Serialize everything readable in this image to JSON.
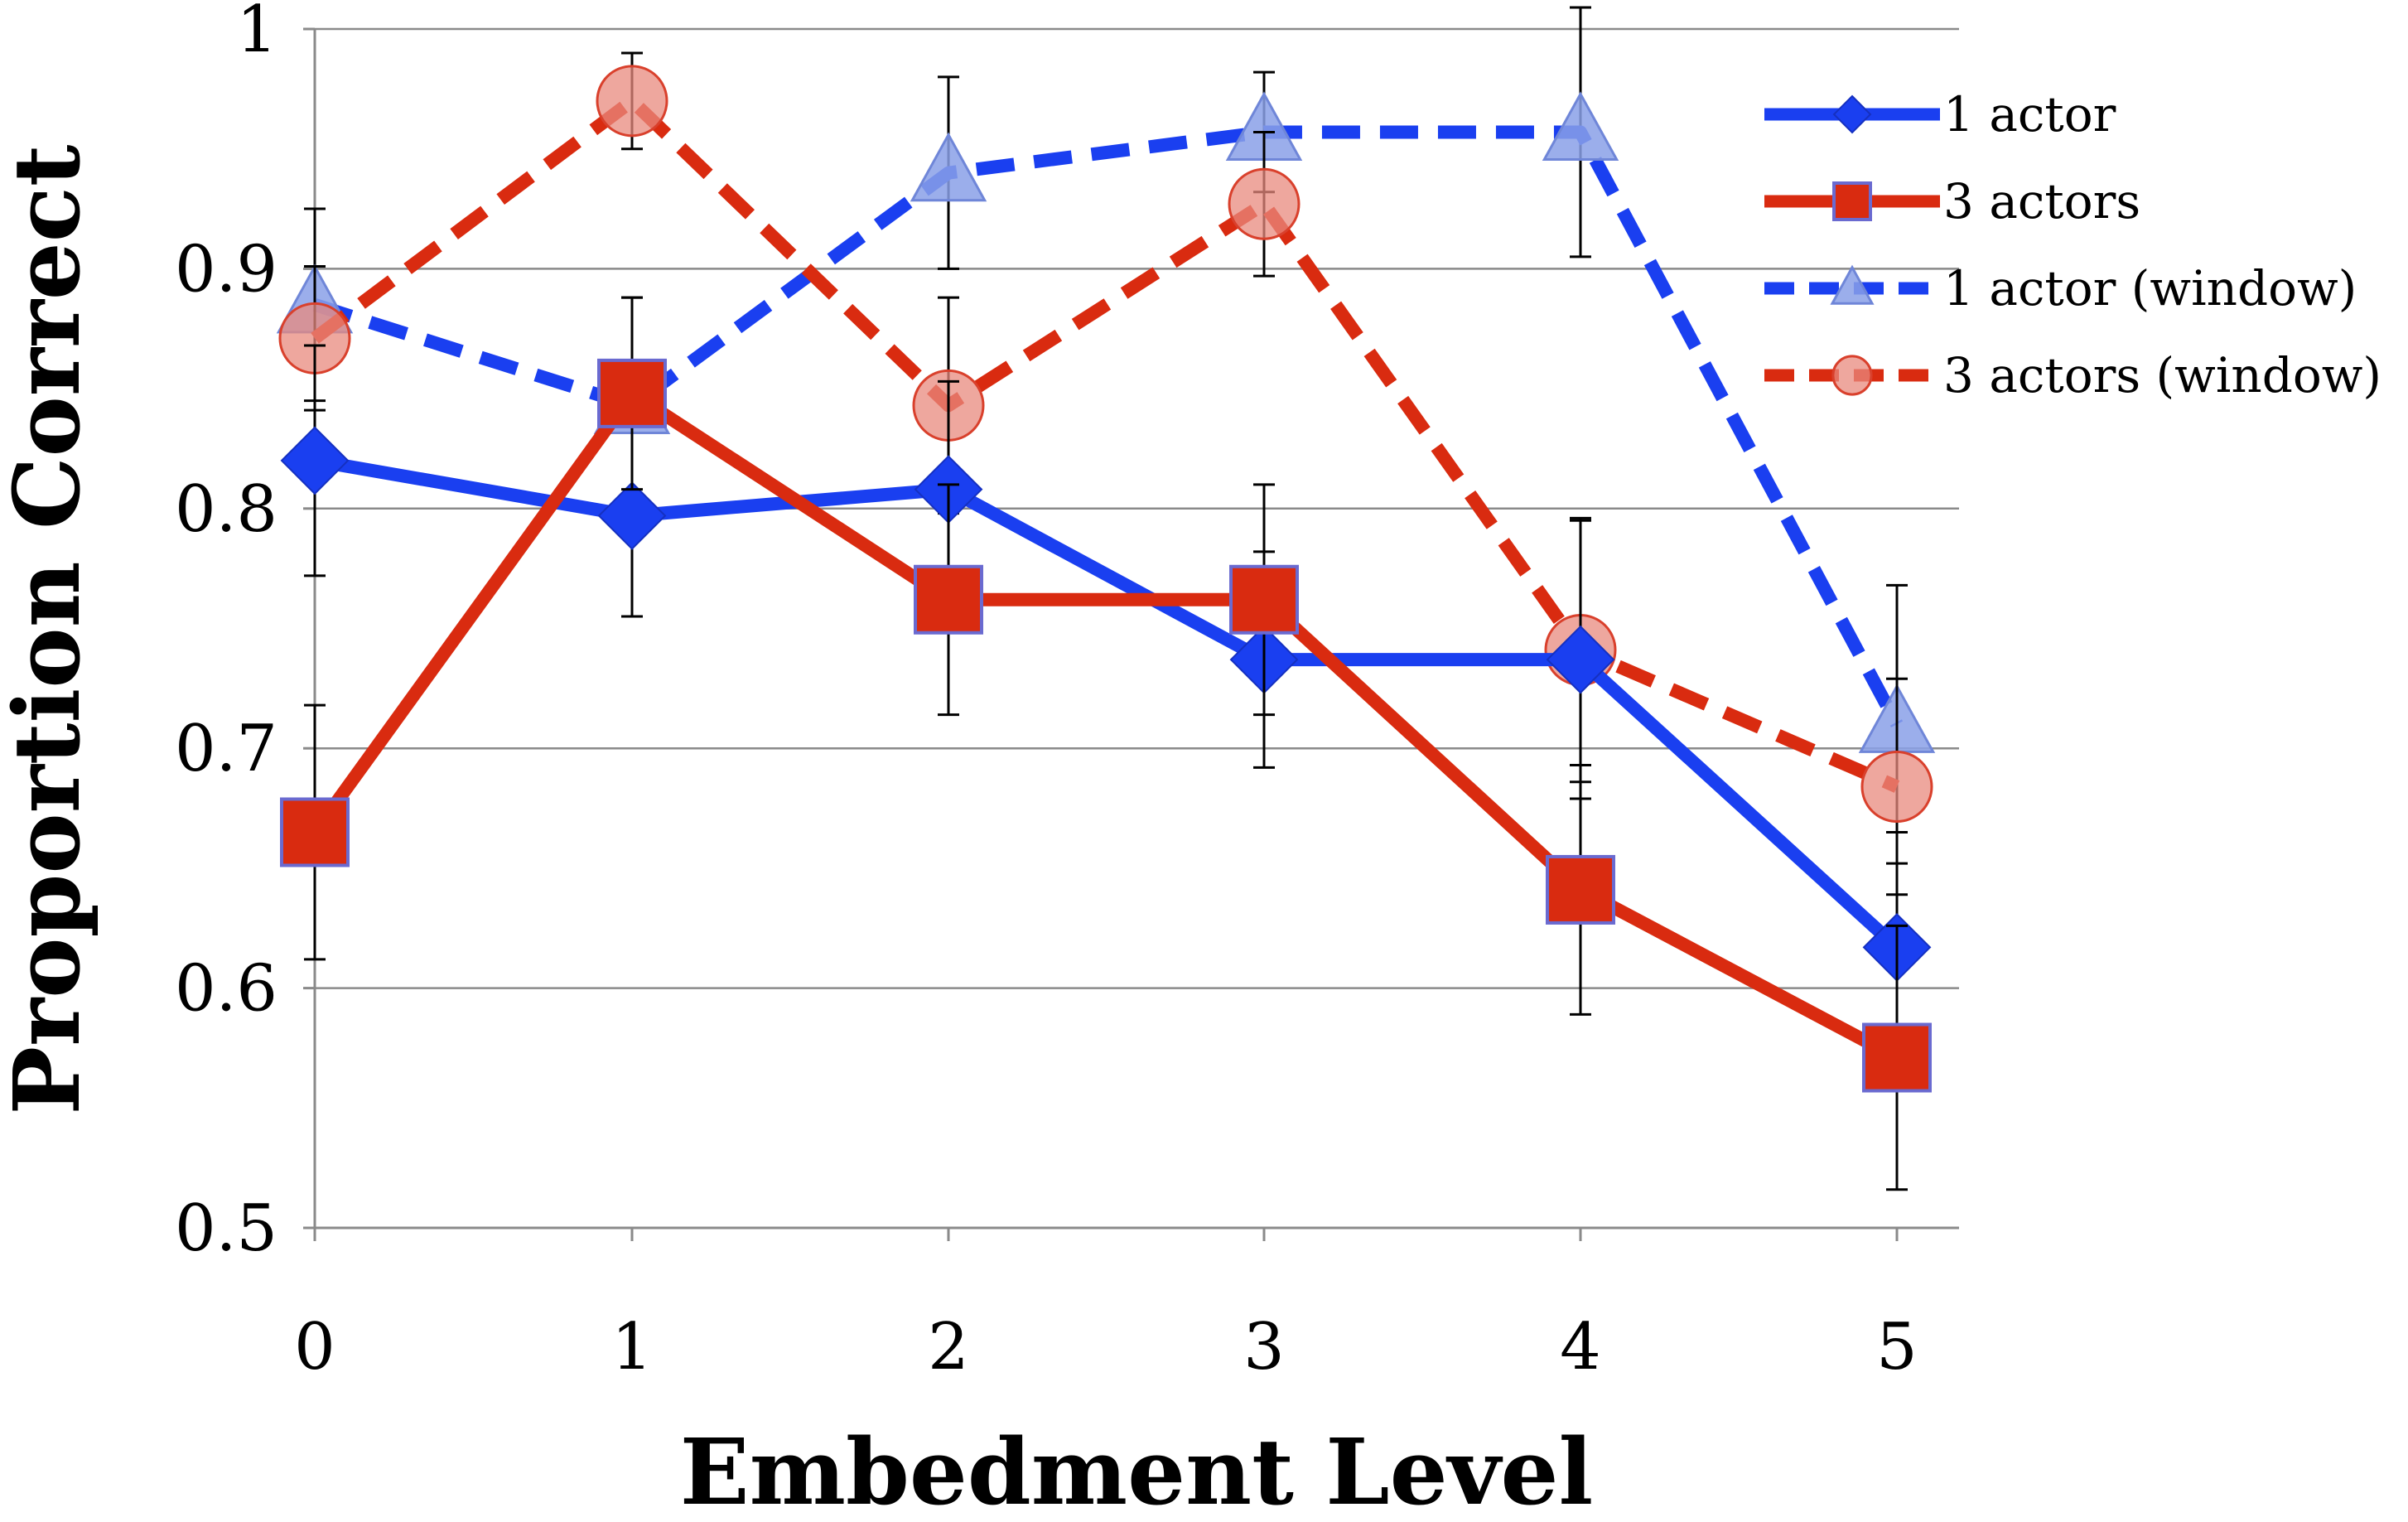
{
  "chart_data": {
    "type": "line",
    "title": "",
    "xlabel": "Embedment Level",
    "ylabel": "Proportion Correct",
    "x": [
      0,
      1,
      2,
      3,
      4,
      5
    ],
    "x_tick_labels": [
      "0",
      "1",
      "2",
      "3",
      "4",
      "5"
    ],
    "ylim": [
      0.5,
      1.0
    ],
    "y_ticks": [
      0.5,
      0.6,
      0.7,
      0.8,
      0.9,
      1.0
    ],
    "y_tick_labels": [
      "0.5",
      "0.6",
      "0.7",
      "0.8",
      "0.9",
      "1"
    ],
    "grid": "horizontal",
    "legend_position": "top-right",
    "series": [
      {
        "name": "1 actor",
        "marker": "diamond",
        "line_style": "solid",
        "color": "#1a3ff0",
        "values": [
          0.82,
          0.797,
          0.808,
          0.737,
          0.737,
          0.617
        ],
        "errors": [
          0.048,
          0.042,
          0.045,
          0.045,
          0.058,
          0.048
        ]
      },
      {
        "name": "3 actors",
        "marker": "square",
        "line_style": "solid",
        "color": "#d92b10",
        "values": [
          0.665,
          0.848,
          0.762,
          0.762,
          0.641,
          0.571
        ],
        "errors": [
          0.053,
          0.04,
          0.048,
          0.048,
          0.052,
          0.055
        ]
      },
      {
        "name": "1 actor (window)",
        "marker": "triangle",
        "line_style": "dashed",
        "color": "#1a3ff0",
        "values": [
          0.885,
          0.843,
          0.94,
          0.957,
          0.957,
          0.71
        ],
        "errors": [
          0.04,
          0.045,
          0.04,
          0.025,
          0.052,
          0.058
        ]
      },
      {
        "name": "3 actors (window)",
        "marker": "circle",
        "line_style": "dashed",
        "color": "#d92b10",
        "values": [
          0.871,
          0.97,
          0.843,
          0.927,
          0.741,
          0.684
        ],
        "errors": [
          0.03,
          0.02,
          0.045,
          0.03,
          0.055,
          0.045
        ]
      }
    ]
  }
}
